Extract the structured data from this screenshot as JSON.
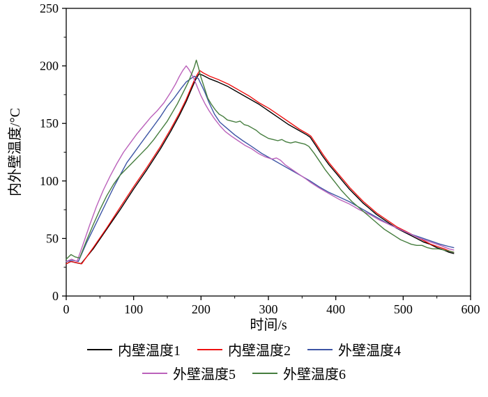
{
  "chart_data": {
    "type": "line",
    "xlabel": "时间/s",
    "ylabel": "内外壁温度/°C",
    "xlim": [
      0,
      600
    ],
    "ylim": [
      0,
      250
    ],
    "xticks": [
      0,
      100,
      200,
      300,
      400,
      500,
      600
    ],
    "yticks": [
      0,
      50,
      100,
      150,
      200,
      250
    ],
    "x_minor_step": 50,
    "y_minor_step": 25,
    "grid": false,
    "legend_position": "below",
    "legend_rows": [
      [
        0,
        1,
        2
      ],
      [
        3,
        4
      ]
    ],
    "series": [
      {
        "name": "内壁温度1",
        "color": "#000000",
        "points": [
          [
            0,
            28
          ],
          [
            7,
            30
          ],
          [
            14,
            29
          ],
          [
            22,
            28
          ],
          [
            40,
            41
          ],
          [
            60,
            58
          ],
          [
            80,
            75
          ],
          [
            100,
            93
          ],
          [
            120,
            110
          ],
          [
            140,
            128
          ],
          [
            155,
            143
          ],
          [
            168,
            157
          ],
          [
            178,
            169
          ],
          [
            186,
            180
          ],
          [
            192,
            188
          ],
          [
            197,
            193
          ],
          [
            202,
            192
          ],
          [
            212,
            189
          ],
          [
            225,
            186
          ],
          [
            240,
            182
          ],
          [
            255,
            177
          ],
          [
            270,
            172
          ],
          [
            285,
            167
          ],
          [
            300,
            161
          ],
          [
            315,
            155
          ],
          [
            330,
            149
          ],
          [
            345,
            144
          ],
          [
            357,
            140
          ],
          [
            362,
            138
          ],
          [
            370,
            131
          ],
          [
            380,
            122
          ],
          [
            390,
            114
          ],
          [
            400,
            107
          ],
          [
            410,
            100
          ],
          [
            420,
            93
          ],
          [
            430,
            87
          ],
          [
            440,
            81
          ],
          [
            450,
            76
          ],
          [
            460,
            71
          ],
          [
            470,
            67
          ],
          [
            480,
            63
          ],
          [
            490,
            59
          ],
          [
            500,
            56
          ],
          [
            510,
            53
          ],
          [
            520,
            50
          ],
          [
            530,
            47
          ],
          [
            540,
            45
          ],
          [
            550,
            42
          ],
          [
            560,
            40
          ],
          [
            568,
            38
          ],
          [
            575,
            37
          ]
        ]
      },
      {
        "name": "内壁温度2",
        "color": "#ee1111",
        "points": [
          [
            0,
            28
          ],
          [
            7,
            30
          ],
          [
            15,
            29
          ],
          [
            23,
            28
          ],
          [
            40,
            42
          ],
          [
            60,
            59
          ],
          [
            80,
            77
          ],
          [
            100,
            95
          ],
          [
            120,
            112
          ],
          [
            140,
            130
          ],
          [
            155,
            145
          ],
          [
            168,
            159
          ],
          [
            178,
            171
          ],
          [
            186,
            182
          ],
          [
            192,
            190
          ],
          [
            198,
            196
          ],
          [
            203,
            194
          ],
          [
            213,
            191
          ],
          [
            226,
            188
          ],
          [
            241,
            184
          ],
          [
            256,
            179
          ],
          [
            271,
            174
          ],
          [
            286,
            168
          ],
          [
            301,
            163
          ],
          [
            316,
            157
          ],
          [
            331,
            151
          ],
          [
            346,
            145
          ],
          [
            358,
            141
          ],
          [
            363,
            139
          ],
          [
            371,
            132
          ],
          [
            381,
            123
          ],
          [
            391,
            115
          ],
          [
            401,
            108
          ],
          [
            411,
            101
          ],
          [
            421,
            94
          ],
          [
            431,
            88
          ],
          [
            441,
            82
          ],
          [
            451,
            77
          ],
          [
            461,
            72
          ],
          [
            471,
            68
          ],
          [
            481,
            64
          ],
          [
            491,
            60
          ],
          [
            501,
            57
          ],
          [
            511,
            54
          ],
          [
            521,
            51
          ],
          [
            531,
            48
          ],
          [
            541,
            45
          ],
          [
            551,
            43
          ],
          [
            561,
            41
          ],
          [
            569,
            39
          ],
          [
            575,
            38
          ]
        ]
      },
      {
        "name": "外壁温度4",
        "color": "#3c54a4",
        "points": [
          [
            0,
            30
          ],
          [
            10,
            31
          ],
          [
            18,
            30
          ],
          [
            30,
            46
          ],
          [
            40,
            58
          ],
          [
            50,
            70
          ],
          [
            60,
            82
          ],
          [
            70,
            94
          ],
          [
            80,
            105
          ],
          [
            90,
            116
          ],
          [
            100,
            124
          ],
          [
            110,
            132
          ],
          [
            120,
            140
          ],
          [
            130,
            148
          ],
          [
            140,
            156
          ],
          [
            150,
            165
          ],
          [
            160,
            172
          ],
          [
            170,
            180
          ],
          [
            178,
            186
          ],
          [
            185,
            189
          ],
          [
            190,
            191
          ],
          [
            196,
            189
          ],
          [
            205,
            178
          ],
          [
            212,
            168
          ],
          [
            220,
            158
          ],
          [
            228,
            151
          ],
          [
            238,
            146
          ],
          [
            250,
            140
          ],
          [
            262,
            135
          ],
          [
            275,
            130
          ],
          [
            290,
            124
          ],
          [
            305,
            119
          ],
          [
            320,
            114
          ],
          [
            335,
            109
          ],
          [
            350,
            104
          ],
          [
            362,
            100
          ],
          [
            375,
            95
          ],
          [
            390,
            90
          ],
          [
            405,
            86
          ],
          [
            420,
            82
          ],
          [
            435,
            77
          ],
          [
            450,
            72
          ],
          [
            465,
            67
          ],
          [
            480,
            62
          ],
          [
            495,
            58
          ],
          [
            510,
            54
          ],
          [
            525,
            51
          ],
          [
            540,
            48
          ],
          [
            555,
            45
          ],
          [
            568,
            43
          ],
          [
            575,
            42
          ]
        ]
      },
      {
        "name": "外壁温度5",
        "color": "#bb62bb",
        "points": [
          [
            0,
            30
          ],
          [
            8,
            32
          ],
          [
            16,
            30
          ],
          [
            25,
            45
          ],
          [
            35,
            62
          ],
          [
            45,
            78
          ],
          [
            55,
            92
          ],
          [
            65,
            104
          ],
          [
            75,
            115
          ],
          [
            85,
            125
          ],
          [
            95,
            133
          ],
          [
            105,
            141
          ],
          [
            115,
            148
          ],
          [
            125,
            155
          ],
          [
            135,
            161
          ],
          [
            145,
            168
          ],
          [
            155,
            177
          ],
          [
            162,
            184
          ],
          [
            168,
            191
          ],
          [
            173,
            196
          ],
          [
            178,
            200
          ],
          [
            182,
            197
          ],
          [
            186,
            193
          ],
          [
            190,
            188
          ],
          [
            195,
            181
          ],
          [
            200,
            174
          ],
          [
            206,
            167
          ],
          [
            212,
            161
          ],
          [
            220,
            154
          ],
          [
            228,
            148
          ],
          [
            236,
            143
          ],
          [
            245,
            139
          ],
          [
            255,
            135
          ],
          [
            265,
            131
          ],
          [
            275,
            128
          ],
          [
            285,
            124
          ],
          [
            295,
            121
          ],
          [
            305,
            119
          ],
          [
            312,
            120
          ],
          [
            318,
            118
          ],
          [
            325,
            114
          ],
          [
            335,
            110
          ],
          [
            345,
            106
          ],
          [
            355,
            102
          ],
          [
            362,
            99
          ],
          [
            375,
            94
          ],
          [
            390,
            89
          ],
          [
            405,
            84
          ],
          [
            420,
            80
          ],
          [
            435,
            75
          ],
          [
            450,
            71
          ],
          [
            465,
            66
          ],
          [
            480,
            62
          ],
          [
            495,
            58
          ],
          [
            510,
            54
          ],
          [
            525,
            50
          ],
          [
            540,
            47
          ],
          [
            555,
            44
          ],
          [
            568,
            41
          ],
          [
            575,
            40
          ]
        ]
      },
      {
        "name": "外壁温度6",
        "color": "#457d3e",
        "points": [
          [
            0,
            32
          ],
          [
            7,
            36
          ],
          [
            13,
            34
          ],
          [
            20,
            33
          ],
          [
            30,
            48
          ],
          [
            40,
            62
          ],
          [
            50,
            75
          ],
          [
            60,
            87
          ],
          [
            70,
            97
          ],
          [
            80,
            105
          ],
          [
            90,
            111
          ],
          [
            100,
            117
          ],
          [
            110,
            123
          ],
          [
            120,
            129
          ],
          [
            130,
            136
          ],
          [
            140,
            144
          ],
          [
            150,
            152
          ],
          [
            158,
            160
          ],
          [
            165,
            167
          ],
          [
            171,
            174
          ],
          [
            177,
            181
          ],
          [
            182,
            187
          ],
          [
            186,
            193
          ],
          [
            190,
            199
          ],
          [
            193,
            205
          ],
          [
            196,
            199
          ],
          [
            200,
            190
          ],
          [
            205,
            181
          ],
          [
            210,
            172
          ],
          [
            215,
            167
          ],
          [
            221,
            162
          ],
          [
            227,
            158
          ],
          [
            233,
            156
          ],
          [
            239,
            153
          ],
          [
            246,
            152
          ],
          [
            252,
            151
          ],
          [
            258,
            152
          ],
          [
            264,
            149
          ],
          [
            270,
            148
          ],
          [
            276,
            146
          ],
          [
            282,
            144
          ],
          [
            288,
            141
          ],
          [
            294,
            139
          ],
          [
            300,
            137
          ],
          [
            307,
            136
          ],
          [
            314,
            135
          ],
          [
            320,
            136
          ],
          [
            326,
            134
          ],
          [
            333,
            133
          ],
          [
            340,
            134
          ],
          [
            347,
            133
          ],
          [
            354,
            132
          ],
          [
            360,
            130
          ],
          [
            368,
            124
          ],
          [
            376,
            117
          ],
          [
            384,
            110
          ],
          [
            392,
            104
          ],
          [
            400,
            98
          ],
          [
            408,
            92
          ],
          [
            416,
            87
          ],
          [
            424,
            82
          ],
          [
            432,
            78
          ],
          [
            440,
            74
          ],
          [
            448,
            70
          ],
          [
            456,
            66
          ],
          [
            464,
            62
          ],
          [
            472,
            58
          ],
          [
            480,
            55
          ],
          [
            488,
            52
          ],
          [
            496,
            49
          ],
          [
            504,
            47
          ],
          [
            512,
            45
          ],
          [
            520,
            44
          ],
          [
            528,
            44
          ],
          [
            536,
            42
          ],
          [
            544,
            41
          ],
          [
            552,
            41
          ],
          [
            560,
            40
          ],
          [
            568,
            39
          ],
          [
            575,
            38
          ]
        ]
      }
    ]
  }
}
